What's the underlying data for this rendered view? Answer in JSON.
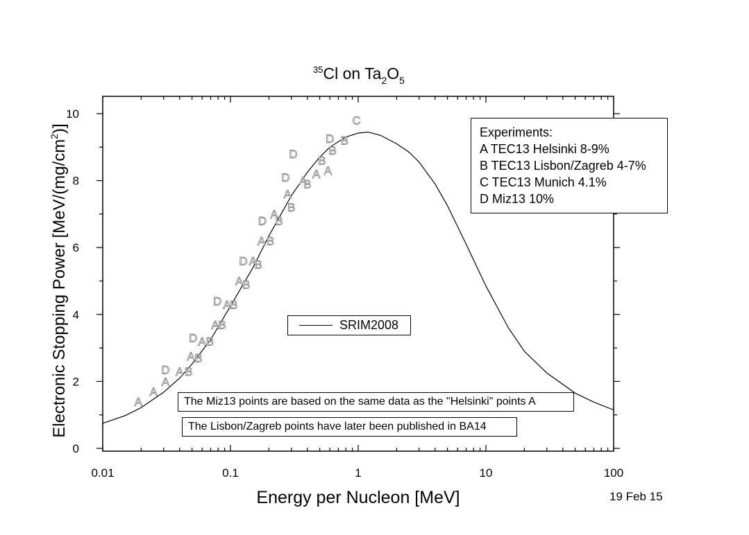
{
  "chart_data": {
    "type": "scatter",
    "title": {
      "mass": "35",
      "element": "Cl",
      "on": " on Ta",
      "sub1": "2",
      "o": "O",
      "sub2": "5"
    },
    "xlabel": "Energy per Nucleon [MeV]",
    "ylabel_main": "Electronic Stopping Power [MeV/(mg/cm",
    "ylabel_sup": "2",
    "ylabel_end": ")]",
    "x_scale": "log",
    "xlim": [
      0.01,
      100
    ],
    "ylim": [
      0,
      10
    ],
    "x_ticks": [
      0.01,
      0.1,
      1,
      10,
      100
    ],
    "x_tick_labels": [
      "0.01",
      "0.1",
      "1",
      "10",
      "100"
    ],
    "y_ticks": [
      0,
      2,
      4,
      6,
      8,
      10
    ],
    "y_tick_labels": [
      "0",
      "2",
      "4",
      "6",
      "8",
      "10"
    ],
    "curve": {
      "name": "SRIM2008",
      "x": [
        0.01,
        0.015,
        0.02,
        0.03,
        0.04,
        0.05,
        0.07,
        0.1,
        0.15,
        0.2,
        0.3,
        0.4,
        0.5,
        0.6,
        0.8,
        1.0,
        1.2,
        1.5,
        2.0,
        2.5,
        3.0,
        4.0,
        5.0,
        7.0,
        10,
        15,
        20,
        30,
        50,
        70,
        100
      ],
      "y": [
        0.75,
        0.98,
        1.22,
        1.68,
        2.1,
        2.52,
        3.25,
        4.25,
        5.4,
        6.35,
        7.55,
        8.25,
        8.7,
        9.0,
        9.3,
        9.42,
        9.45,
        9.35,
        9.1,
        8.85,
        8.55,
        7.9,
        7.25,
        6.1,
        4.85,
        3.6,
        2.9,
        2.25,
        1.65,
        1.38,
        1.15
      ]
    },
    "series": [
      {
        "name": "A",
        "x": [
          0.019,
          0.025,
          0.031,
          0.04,
          0.049,
          0.06,
          0.076,
          0.094,
          0.117,
          0.15,
          0.175,
          0.22,
          0.28,
          0.37,
          0.47,
          0.58
        ],
        "y": [
          1.4,
          1.7,
          2.0,
          2.3,
          2.75,
          3.2,
          3.7,
          4.3,
          5.0,
          5.6,
          6.2,
          7.0,
          7.6,
          8.0,
          8.2,
          8.3
        ]
      },
      {
        "name": "B",
        "x": [
          0.047,
          0.056,
          0.069,
          0.086,
          0.106,
          0.133,
          0.165,
          0.205,
          0.24,
          0.3,
          0.4,
          0.52,
          0.63,
          0.78
        ],
        "y": [
          2.3,
          2.7,
          3.2,
          3.7,
          4.3,
          4.9,
          5.5,
          6.2,
          6.8,
          7.2,
          7.9,
          8.6,
          8.9,
          9.2
        ]
      },
      {
        "name": "C",
        "x": [
          0.97
        ],
        "y": [
          9.8
        ]
      },
      {
        "name": "D",
        "x": [
          0.031,
          0.051,
          0.079,
          0.126,
          0.178,
          0.27,
          0.31,
          0.6
        ],
        "y": [
          2.35,
          3.3,
          4.4,
          5.6,
          6.8,
          8.1,
          8.8,
          9.25
        ]
      }
    ],
    "legend_experiments": {
      "title": "Experiments:",
      "entries": [
        "A TEC13 Helsinki 8-9%",
        "B TEC13 Lisbon/Zagreb 4-7%",
        "C TEC13 Munich 4.1%",
        "D Miz13 10%"
      ],
      "placement": "top-right"
    },
    "legend_curve": "SRIM2008",
    "annotations": [
      "The Miz13 points are based on the same data as the \"Helsinki\" points A",
      "The Lisbon/Zagreb points have later been published in BA14"
    ],
    "date": "19 Feb 15"
  }
}
